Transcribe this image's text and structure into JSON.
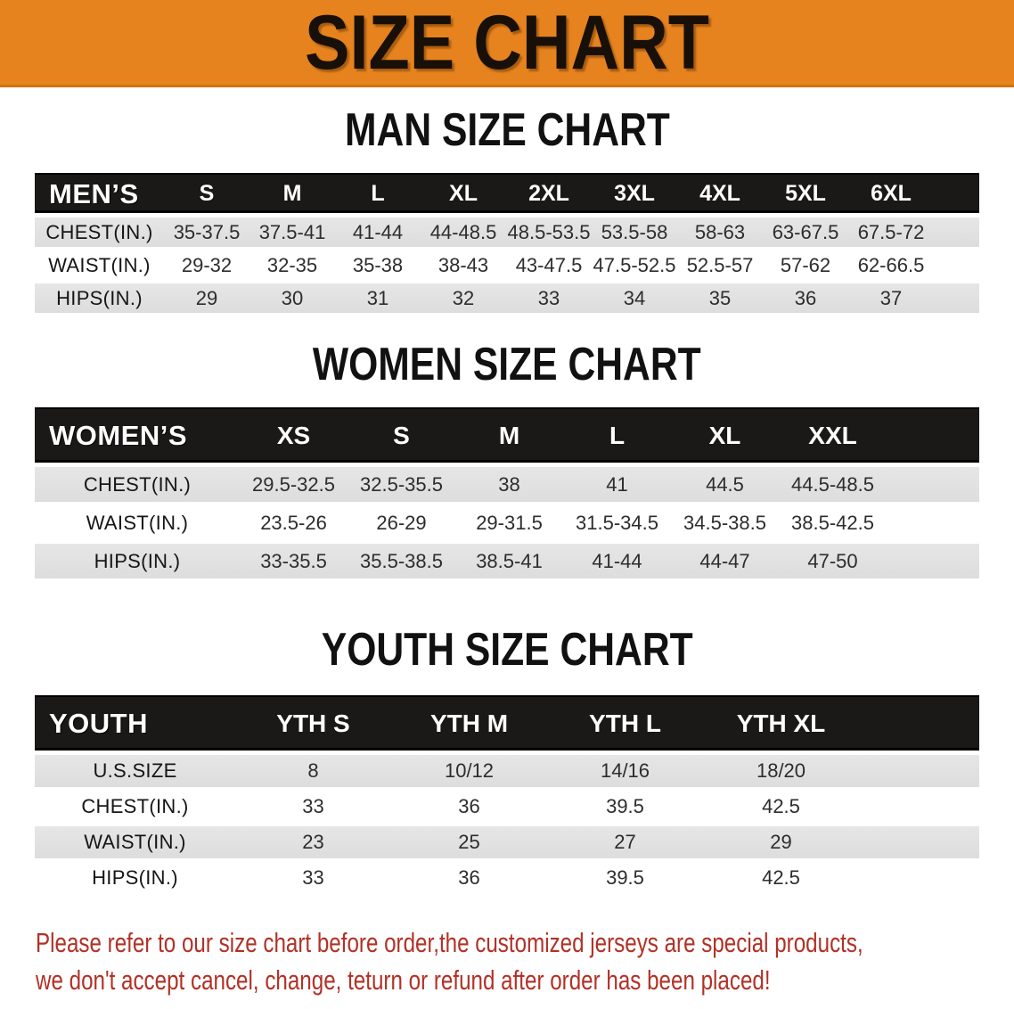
{
  "banner": {
    "title": "SIZE CHART",
    "bg_color": "#e6831e"
  },
  "colors": {
    "header_bar": "#1b1918",
    "shaded_row": "#e2e2e2",
    "footer_text": "#b23126"
  },
  "sections": [
    {
      "heading": "MAN SIZE CHART",
      "table": {
        "header_label": "MEN’S",
        "columns": [
          "S",
          "M",
          "L",
          "XL",
          "2XL",
          "3XL",
          "4XL",
          "5XL",
          "6XL"
        ],
        "rows": [
          {
            "label": "CHEST(IN.)",
            "shaded": true,
            "values": [
              "35-37.5",
              "37.5-41",
              "41-44",
              "44-48.5",
              "48.5-53.5",
              "53.5-58",
              "58-63",
              "63-67.5",
              "67.5-72"
            ]
          },
          {
            "label": "WAIST(IN.)",
            "shaded": false,
            "values": [
              "29-32",
              "32-35",
              "35-38",
              "38-43",
              "43-47.5",
              "47.5-52.5",
              "52.5-57",
              "57-62",
              "62-66.5"
            ]
          },
          {
            "label": "HIPS(IN.)",
            "shaded": true,
            "values": [
              "29",
              "30",
              "31",
              "32",
              "33",
              "34",
              "35",
              "36",
              "37"
            ]
          }
        ]
      }
    },
    {
      "heading": "WOMEN SIZE CHART",
      "table": {
        "header_label": "WOMEN’S",
        "columns": [
          "XS",
          "S",
          "M",
          "L",
          "XL",
          "XXL"
        ],
        "rows": [
          {
            "label": "CHEST(IN.)",
            "shaded": true,
            "values": [
              "29.5-32.5",
              "32.5-35.5",
              "38",
              "41",
              "44.5",
              "44.5-48.5"
            ]
          },
          {
            "label": "WAIST(IN.)",
            "shaded": false,
            "values": [
              "23.5-26",
              "26-29",
              "29-31.5",
              "31.5-34.5",
              "34.5-38.5",
              "38.5-42.5"
            ]
          },
          {
            "label": "HIPS(IN.)",
            "shaded": true,
            "values": [
              "33-35.5",
              "35.5-38.5",
              "38.5-41",
              "41-44",
              "44-47",
              "47-50"
            ]
          }
        ]
      }
    },
    {
      "heading": "YOUTH SIZE CHART",
      "table": {
        "header_label": "YOUTH",
        "columns": [
          "YTH S",
          "YTH M",
          "YTH L",
          "YTH XL"
        ],
        "rows": [
          {
            "label": "U.S.SIZE",
            "shaded": true,
            "values": [
              "8",
              "10/12",
              "14/16",
              "18/20"
            ]
          },
          {
            "label": "CHEST(IN.)",
            "shaded": false,
            "values": [
              "33",
              "36",
              "39.5",
              "42.5"
            ]
          },
          {
            "label": "WAIST(IN.)",
            "shaded": true,
            "values": [
              "23",
              "25",
              "27",
              "29"
            ]
          },
          {
            "label": "HIPS(IN.)",
            "shaded": false,
            "values": [
              "33",
              "36",
              "39.5",
              "42.5"
            ]
          }
        ]
      }
    }
  ],
  "footer": {
    "line1": "Please refer to our size chart before order,the customized jerseys are special products,",
    "line2": "we don't accept cancel, change, teturn or refund after order has been placed!"
  }
}
